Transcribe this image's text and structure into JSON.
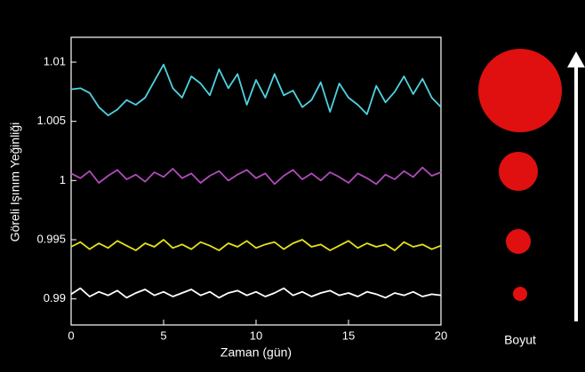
{
  "chart_data": {
    "type": "line",
    "xlabel": "Zaman (gün)",
    "ylabel": "Göreli Işınım Yeğinliği",
    "side_label": "Boyut",
    "x": [
      0,
      0.5,
      1,
      1.5,
      2,
      2.5,
      3,
      3.5,
      4,
      4.5,
      5,
      5.5,
      6,
      6.5,
      7,
      7.5,
      8,
      8.5,
      9,
      9.5,
      10,
      10.5,
      11,
      11.5,
      12,
      12.5,
      13,
      13.5,
      14,
      14.5,
      15,
      15.5,
      16,
      16.5,
      17,
      17.5,
      18,
      18.5,
      19,
      19.5,
      20
    ],
    "series": [
      {
        "color": "#4fd2e0",
        "values": [
          1.0077,
          1.0078,
          1.0074,
          1.0062,
          1.0055,
          1.006,
          1.0068,
          1.0064,
          1.007,
          1.0084,
          1.0098,
          1.0078,
          1.007,
          1.0088,
          1.0082,
          1.0072,
          1.0094,
          1.0078,
          1.009,
          1.0064,
          1.0085,
          1.007,
          1.009,
          1.0072,
          1.0076,
          1.0062,
          1.0068,
          1.0083,
          1.0058,
          1.0082,
          1.007,
          1.0064,
          1.0056,
          1.008,
          1.0066,
          1.0075,
          1.0088,
          1.0073,
          1.0086,
          1.007,
          1.0062
        ]
      },
      {
        "color": "#b04cb8",
        "values": [
          1.0006,
          1.0002,
          1.0008,
          0.9998,
          1.0004,
          1.0009,
          1.0001,
          1.0005,
          0.9999,
          1.0007,
          1.0003,
          1.001,
          1.0002,
          1.0006,
          0.9998,
          1.0004,
          1.0008,
          1.0,
          1.0005,
          1.0009,
          1.0002,
          1.0006,
          0.9997,
          1.0004,
          1.0009,
          1.0001,
          1.0006,
          1.0,
          1.0007,
          1.0003,
          0.9998,
          1.0006,
          1.0002,
          0.9997,
          1.0005,
          1.0001,
          1.0008,
          1.0003,
          1.0011,
          1.0004,
          1.0007
        ]
      },
      {
        "color": "#e6e01e",
        "values": [
          0.9944,
          0.9948,
          0.9942,
          0.9947,
          0.9943,
          0.9949,
          0.9945,
          0.9941,
          0.9947,
          0.9944,
          0.995,
          0.9943,
          0.9946,
          0.9942,
          0.9948,
          0.9945,
          0.9941,
          0.9947,
          0.9944,
          0.9949,
          0.9943,
          0.9946,
          0.9948,
          0.9942,
          0.9947,
          0.995,
          0.9944,
          0.9946,
          0.9941,
          0.9945,
          0.9949,
          0.9943,
          0.9947,
          0.9944,
          0.9946,
          0.9941,
          0.9948,
          0.9944,
          0.9946,
          0.9942,
          0.9945
        ]
      },
      {
        "color": "#ffffff",
        "values": [
          0.9904,
          0.9909,
          0.9902,
          0.9906,
          0.9903,
          0.9907,
          0.9901,
          0.9905,
          0.9908,
          0.9903,
          0.9906,
          0.9902,
          0.9905,
          0.9908,
          0.9903,
          0.9906,
          0.9901,
          0.9905,
          0.9907,
          0.9903,
          0.9906,
          0.9902,
          0.9905,
          0.9909,
          0.9903,
          0.9906,
          0.9902,
          0.9905,
          0.9907,
          0.9903,
          0.9905,
          0.9902,
          0.9906,
          0.9904,
          0.9901,
          0.9905,
          0.9903,
          0.9906,
          0.9902,
          0.9904,
          0.9903
        ]
      }
    ],
    "xlim": [
      0,
      20
    ],
    "xticks": [
      0,
      5,
      10,
      15,
      20
    ],
    "ylim": [
      0.9878,
      1.0121
    ],
    "yticks": [
      0.99,
      0.995,
      1,
      1.005,
      1.01
    ]
  }
}
